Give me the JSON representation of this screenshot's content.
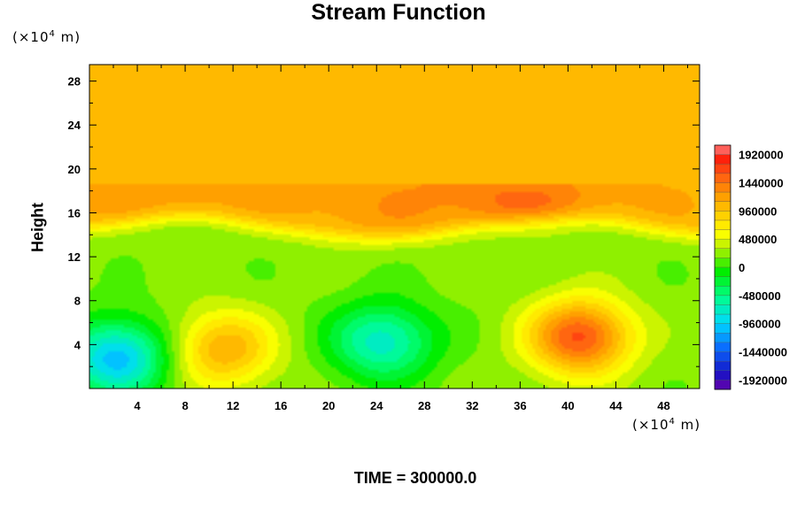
{
  "chart_data": {
    "type": "heatmap",
    "title": "Stream Function",
    "ylabel": "Height",
    "x_unit": "(×10⁴ m)",
    "y_unit": "(×10⁴ m)",
    "xlim": [
      0,
      51
    ],
    "ylim": [
      0,
      29.5
    ],
    "x_ticks": [
      4,
      8,
      12,
      16,
      20,
      24,
      28,
      32,
      36,
      40,
      44,
      48
    ],
    "y_ticks": [
      4,
      8,
      12,
      16,
      20,
      24,
      28
    ],
    "colorbar": {
      "labels": [
        "1920000",
        "1440000",
        "960000",
        "480000",
        "0",
        "-480000",
        "-960000",
        "-1440000",
        "-1920000"
      ],
      "values": [
        1920000,
        1440000,
        960000,
        480000,
        0,
        -480000,
        -960000,
        -1440000,
        -1920000
      ],
      "min": -2080000,
      "max": 2080000,
      "levels": 26
    },
    "annotation": "TIME = 300000.0",
    "features": [
      {
        "kind": "min",
        "x": 2.3,
        "y": 2.8,
        "value": -1150000
      },
      {
        "kind": "max",
        "x": 11.2,
        "y": 3.6,
        "value": 1000000
      },
      {
        "kind": "min",
        "x": 24.5,
        "y": 4.3,
        "value": -850000
      },
      {
        "kind": "max",
        "x": 41.0,
        "y": 4.7,
        "value": 1550000
      },
      {
        "kind": "max",
        "x": 36.5,
        "y": 16.8,
        "value": 1250000
      },
      {
        "kind": "max",
        "x": 8.5,
        "y": 17.2,
        "value": 1100000
      },
      {
        "kind": "max",
        "x": 1.3,
        "y": 16.5,
        "value": 1100000
      }
    ]
  }
}
